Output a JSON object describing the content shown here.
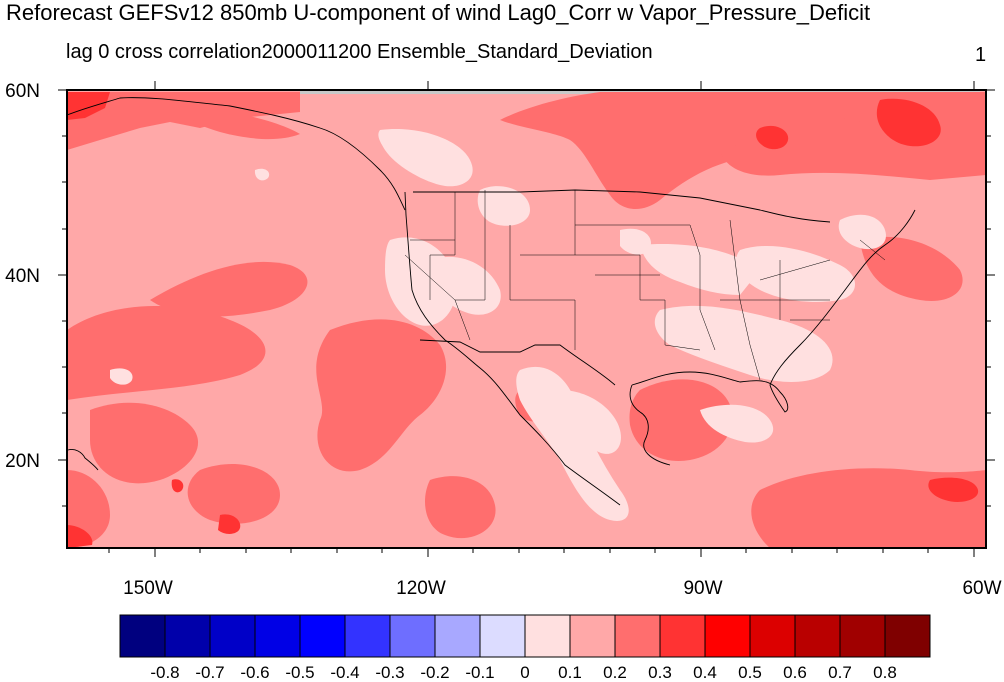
{
  "title": "Reforecast GEFSv12 850mb U-component of wind Lag0_Corr w Vapor_Pressure_Deficit",
  "subtitle_left": "lag 0 cross correlation2000011200 Ensemble_Standard_Deviation",
  "subtitle_right": "1",
  "map": {
    "lat_labels": [
      "60N",
      "40N",
      "20N"
    ],
    "lat_values": [
      60,
      40,
      20
    ],
    "lon_labels": [
      "150W",
      "120W",
      "90W",
      "60W"
    ],
    "lon_values": [
      -150,
      -120,
      -90,
      -60
    ],
    "lat_range": [
      10,
      60
    ],
    "lon_range": [
      -161,
      -60
    ],
    "region": "North America / Continental United States"
  },
  "colorbar": {
    "labels": [
      "-0.8",
      "-0.7",
      "-0.6",
      "-0.5",
      "-0.4",
      "-0.3",
      "-0.2",
      "-0.1",
      "0",
      "0.1",
      "0.2",
      "0.3",
      "0.4",
      "0.5",
      "0.6",
      "0.7",
      "0.8"
    ],
    "colors": [
      "#00007f",
      "#0000aa",
      "#0000c8",
      "#0000e6",
      "#0000ff",
      "#3333ff",
      "#6e6eff",
      "#a8a8ff",
      "#dcdcff",
      "#ffe0e0",
      "#ffa8a8",
      "#ff6e6e",
      "#ff3333",
      "#ff0000",
      "#dc0000",
      "#b90000",
      "#a00000",
      "#7f0000"
    ]
  },
  "chart_data": {
    "type": "heatmap",
    "title": "Reforecast GEFSv12 850mb U-component of wind Lag0_Corr w Vapor_Pressure_Deficit",
    "subtitle": "lag 0 cross correlation2000011200 Ensemble_Standard_Deviation",
    "x_ticks": [
      "150W",
      "120W",
      "90W",
      "60W"
    ],
    "y_ticks": [
      "60N",
      "40N",
      "20N"
    ],
    "colorbar_levels": [
      -0.8,
      -0.7,
      -0.6,
      -0.5,
      -0.4,
      -0.3,
      -0.2,
      -0.1,
      0,
      0.1,
      0.2,
      0.3,
      0.4,
      0.5,
      0.6,
      0.7,
      0.8
    ],
    "dominant_range": [
      0.1,
      0.3
    ]
  }
}
